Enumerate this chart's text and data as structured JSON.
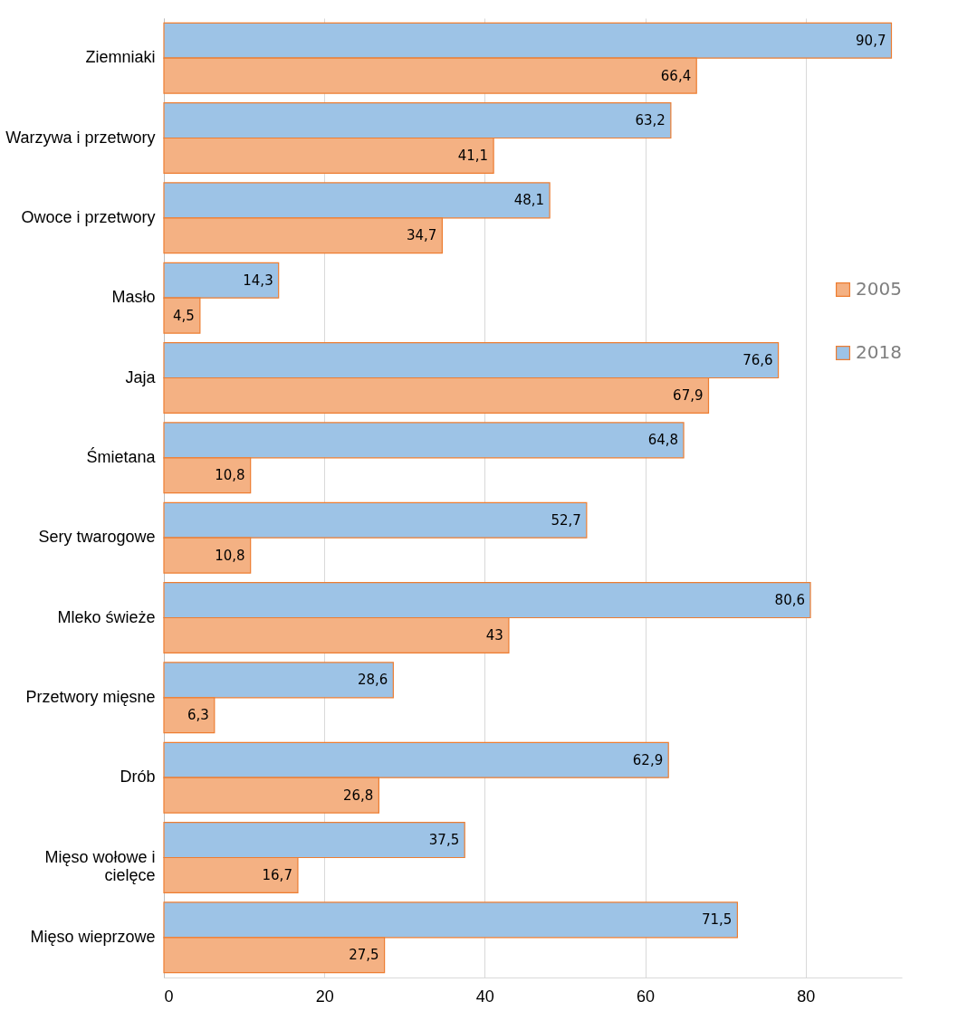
{
  "chart_data": {
    "type": "bar",
    "orientation": "horizontal",
    "categories": [
      "Ziemniaki",
      "Warzywa i przetwory",
      "Owoce i przetwory",
      "Masło",
      "Jaja",
      "Śmietana",
      "Sery twarogowe",
      "Mleko świeże",
      "Przetwory mięsne",
      "Drób",
      "Mięso wołowe i cielęce",
      "Mięso wieprzowe"
    ],
    "series": [
      {
        "name": "2018",
        "color": "#9dc3e6",
        "values": [
          90.7,
          63.2,
          48.1,
          14.3,
          76.6,
          64.8,
          52.7,
          80.6,
          28.6,
          62.9,
          37.5,
          71.5
        ],
        "value_labels": [
          "90,7",
          "63,2",
          "48,1",
          "14,3",
          "76,6",
          "64,8",
          "52,7",
          "80,6",
          "28,6",
          "62,9",
          "37,5",
          "71,5"
        ]
      },
      {
        "name": "2005",
        "color": "#f4b183",
        "values": [
          66.4,
          41.1,
          34.7,
          4.5,
          67.9,
          10.8,
          10.8,
          43,
          6.3,
          26.8,
          16.7,
          27.5
        ],
        "value_labels": [
          "66,4",
          "41,1",
          "34,7",
          "4,5",
          "67,9",
          "10,8",
          "10,8",
          "43",
          "6,3",
          "26,8",
          "16,7",
          "27,5"
        ]
      }
    ],
    "xlim": [
      0,
      92
    ],
    "xticks": [
      0,
      20,
      40,
      60,
      80
    ],
    "grid": "x",
    "legend": "right"
  }
}
